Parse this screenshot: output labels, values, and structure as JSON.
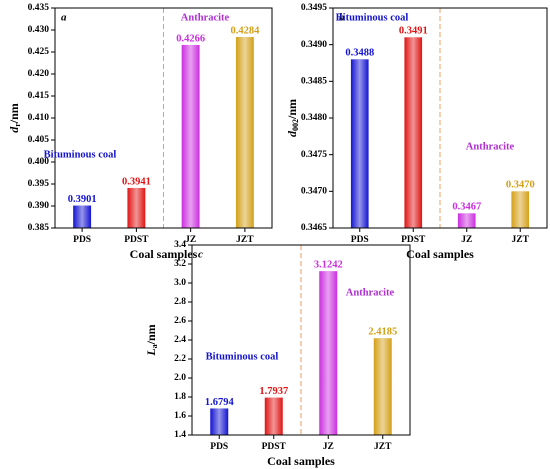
{
  "chart_data": [
    {
      "type": "bar",
      "label": "a",
      "ylabel": [
        "d",
        "r",
        "/nm"
      ],
      "xlabel": "Coal samples",
      "categories": [
        "PDS",
        "PDST",
        "JZ",
        "JZT"
      ],
      "values": [
        0.3901,
        0.3941,
        0.4266,
        0.4284
      ],
      "colors": [
        "#1414d2",
        "#e01414",
        "#cc2ee0",
        "#d4a018"
      ],
      "ylim": [
        0.385,
        0.435
      ],
      "yticks": [
        0.385,
        {
          "value": 0.39,
          "label": "0.390"
        },
        0.395,
        {
          "value": 0.4,
          "label": "0.400"
        },
        0.405,
        {
          "value": 0.41,
          "label": "0.410"
        },
        0.415,
        {
          "value": 0.42,
          "label": "0.420"
        },
        0.425,
        {
          "value": 0.43,
          "label": "0.430"
        },
        0.435
      ],
      "annotations": [
        {
          "text": "Bituminous coal",
          "color": "#1414c8"
        },
        {
          "text": "Anthracite",
          "color": "#b030d0"
        }
      ]
    },
    {
      "type": "bar",
      "label": "b",
      "ylabel": [
        "d",
        "002",
        "/nm"
      ],
      "xlabel": "Coal samples",
      "categories": [
        "PDS",
        "PDST",
        "JZ",
        "JZT"
      ],
      "values": [
        0.3488,
        0.3491,
        0.3467,
        0.347
      ],
      "value_labels": [
        "0.3488",
        "0.3491",
        "0.3467",
        "0.3470"
      ],
      "colors": [
        "#1414d2",
        "#e01414",
        "#cc2ee0",
        "#d4a018"
      ],
      "ylim": [
        0.3465,
        0.3495
      ],
      "yticks": [
        0.3465,
        {
          "value": 0.347,
          "label": "0.3470"
        },
        0.3475,
        {
          "value": 0.348,
          "label": "0.3480"
        },
        0.3485,
        {
          "value": 0.349,
          "label": "0.3490"
        },
        0.3495
      ],
      "annotations": [
        {
          "text": "Bituminous coal",
          "color": "#1414c8"
        },
        {
          "text": "Anthracite",
          "color": "#b030d0"
        }
      ]
    },
    {
      "type": "bar",
      "label": "c",
      "ylabel": [
        "L",
        "a",
        "/nm"
      ],
      "xlabel": "Coal samples",
      "categories": [
        "PDS",
        "PDST",
        "JZ",
        "JZT"
      ],
      "values": [
        1.6794,
        1.7937,
        3.1242,
        2.4185
      ],
      "colors": [
        "#1414d2",
        "#e01414",
        "#cc2ee0",
        "#d4a018"
      ],
      "ylim": [
        1.4,
        3.4
      ],
      "yticks": [
        1.4,
        1.6,
        1.8,
        {
          "value": 2,
          "label": "2.0"
        },
        2.2,
        2.4,
        2.6,
        2.8,
        {
          "value": 3,
          "label": "3.0"
        },
        3.2,
        3.4
      ],
      "annotations": [
        {
          "text": "Bituminous coal",
          "color": "#1414c8"
        },
        {
          "text": "Anthracite",
          "color": "#b030d0"
        }
      ]
    }
  ]
}
